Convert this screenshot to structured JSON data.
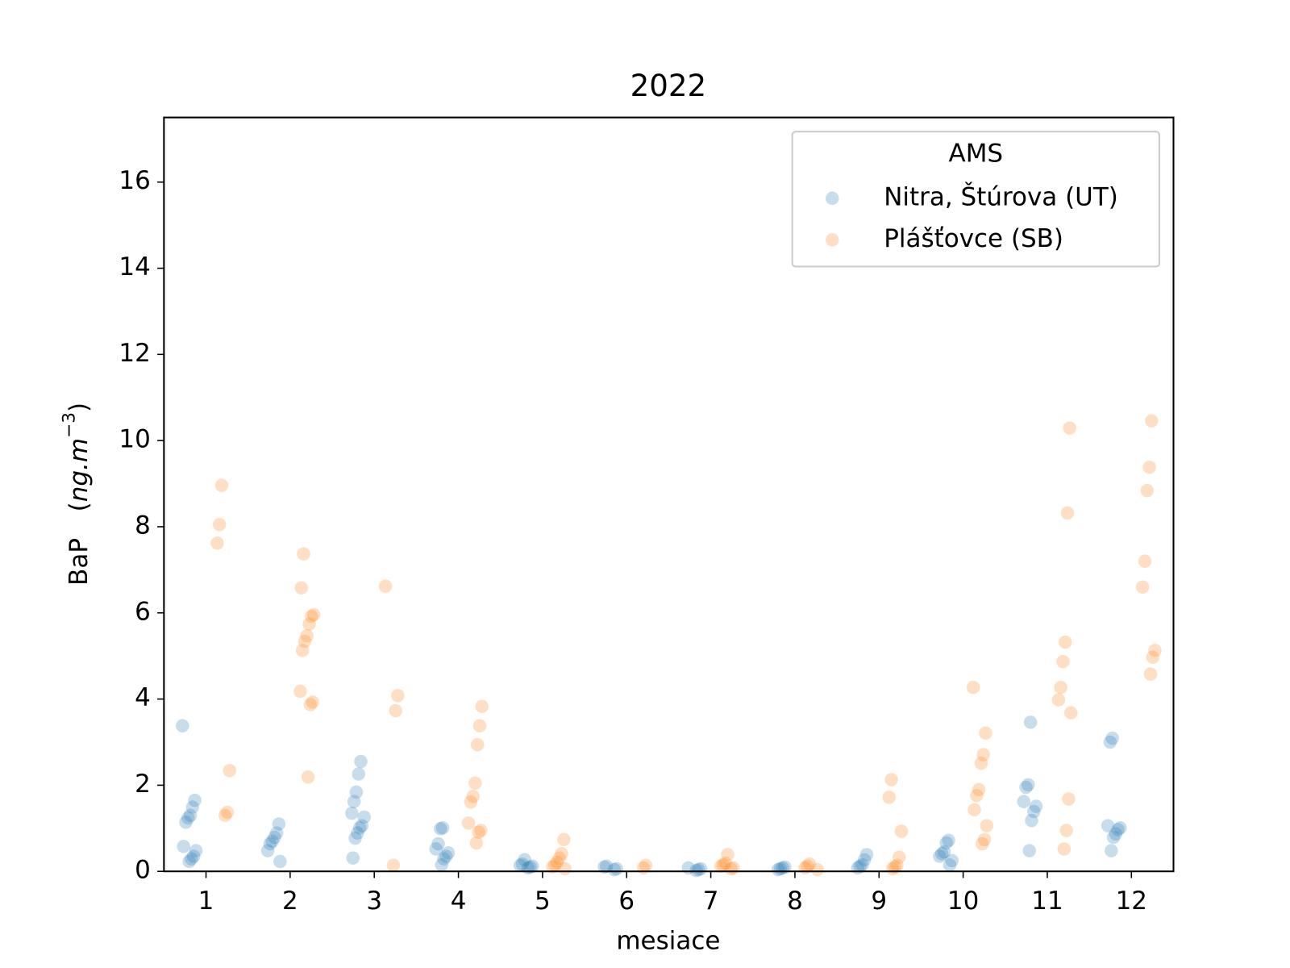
{
  "chart_data": {
    "type": "strip",
    "title": "2022",
    "xlabel": "mesiace",
    "ylabel_parts": [
      "BaP",
      "(",
      "ng.m",
      "−3",
      ")"
    ],
    "categories": [
      "1",
      "2",
      "3",
      "4",
      "5",
      "6",
      "7",
      "8",
      "9",
      "10",
      "11",
      "12"
    ],
    "ylim": [
      0,
      17.5
    ],
    "yticks": [
      0,
      2,
      4,
      6,
      8,
      10,
      12,
      14,
      16
    ],
    "legend_title": "AMS",
    "legend_loc": "upper right",
    "alpha": 0.25,
    "series": [
      {
        "name": "Nitra, Štúrova (UT)",
        "color": "#1f77b4",
        "values": [
          [
            3.38,
            1.65,
            1.49,
            1.3,
            1.24,
            1.14,
            0.58,
            0.48,
            0.35,
            0.29,
            0.23
          ],
          [
            1.1,
            0.89,
            0.79,
            0.7,
            0.64,
            0.48,
            0.23
          ],
          [
            2.55,
            2.26,
            1.84,
            1.62,
            1.35,
            1.26,
            1.06,
            1.01,
            0.89,
            0.77,
            0.31
          ],
          [
            1.01,
            0.99,
            0.64,
            0.52,
            0.43,
            0.35,
            0.29,
            0.15
          ],
          [
            0.27,
            0.17,
            0.14,
            0.12,
            0.1,
            0.08
          ],
          [
            0.12,
            0.1,
            0.06,
            0.04
          ],
          [
            0.08,
            0.06,
            0.04,
            0.02
          ],
          [
            0.1,
            0.08,
            0.06,
            0.04
          ],
          [
            0.39,
            0.27,
            0.15,
            0.12,
            0.08
          ],
          [
            0.72,
            0.66,
            0.45,
            0.41,
            0.35,
            0.25,
            0.15
          ],
          [
            3.46,
            2.01,
            1.95,
            1.62,
            1.51,
            1.39,
            1.18,
            0.48
          ],
          [
            3.09,
            3.0,
            1.06,
            1.01,
            0.97,
            0.87,
            0.79,
            0.48
          ]
        ]
      },
      {
        "name": "Plášťovce (SB)",
        "color": "#ff7f0e",
        "values": [
          [
            8.96,
            8.05,
            7.62,
            2.34,
            1.37,
            1.3
          ],
          [
            7.37,
            6.58,
            5.96,
            5.92,
            5.74,
            5.47,
            5.34,
            5.13,
            4.18,
            3.93,
            3.87,
            2.19
          ],
          [
            6.62,
            4.08,
            3.73,
            0.14
          ],
          [
            3.83,
            3.38,
            2.94,
            2.05,
            1.74,
            1.61,
            1.12,
            0.95,
            0.91,
            0.66
          ],
          [
            0.74,
            0.41,
            0.31,
            0.21,
            0.15,
            0.1,
            0.06
          ],
          [
            0.14,
            0.08
          ],
          [
            0.39,
            0.19,
            0.15,
            0.12,
            0.08,
            0.06
          ],
          [
            0.17,
            0.12,
            0.08,
            0.04
          ],
          [
            2.13,
            1.72,
            0.93,
            0.33,
            0.14,
            0.1,
            0.06
          ],
          [
            4.27,
            3.21,
            2.71,
            2.51,
            1.9,
            1.76,
            1.43,
            1.06,
            0.74,
            0.64
          ],
          [
            10.29,
            8.32,
            5.32,
            4.87,
            4.27,
            3.98,
            3.68,
            1.68,
            0.95,
            0.52
          ],
          [
            10.46,
            9.38,
            8.84,
            7.2,
            6.6,
            5.13,
            4.97,
            4.58
          ]
        ]
      }
    ]
  }
}
